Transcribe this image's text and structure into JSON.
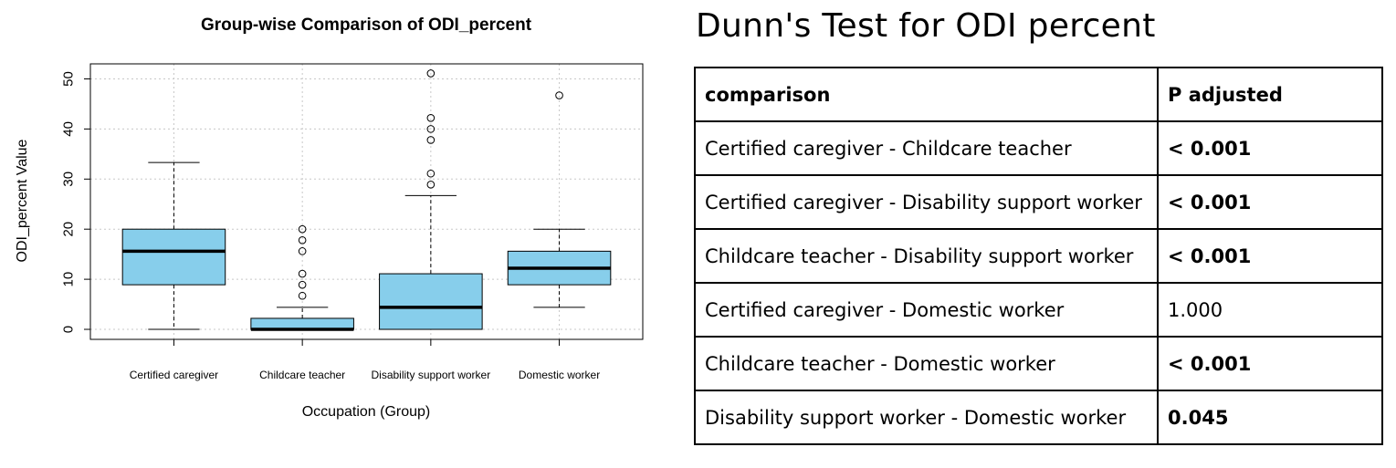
{
  "chart_data": {
    "type": "boxplot",
    "title": "Group-wise Comparison of ODI_percent",
    "xlabel": "Occupation (Group)",
    "ylabel": "ODI_percent Value",
    "ylim": [
      -2,
      53
    ],
    "yticks": [
      0,
      10,
      20,
      30,
      40,
      50
    ],
    "grid": true,
    "box_color": "#87ceeb",
    "groups": [
      {
        "name": "Certified caregiver",
        "whisker_low": 0,
        "q1": 8.9,
        "median": 15.6,
        "q3": 20,
        "whisker_high": 33.3,
        "outliers": []
      },
      {
        "name": "Childcare teacher",
        "whisker_low": 0,
        "q1": 0,
        "median": 0,
        "q3": 2.2,
        "whisker_high": 4.4,
        "outliers": [
          6.7,
          8.9,
          11.1,
          15.6,
          17.8,
          20
        ]
      },
      {
        "name": "Disability support worker",
        "whisker_low": 0,
        "q1": 0,
        "median": 4.4,
        "q3": 11.1,
        "whisker_high": 26.7,
        "outliers": [
          28.9,
          31.1,
          37.8,
          40,
          42.2,
          51.1
        ]
      },
      {
        "name": "Domestic worker",
        "whisker_low": 4.4,
        "q1": 8.9,
        "median": 12.2,
        "q3": 15.6,
        "whisker_high": 20,
        "outliers": [
          46.7
        ]
      }
    ]
  },
  "table": {
    "title": "Dunn's Test for ODI percent",
    "headers": [
      "comparison",
      "P adjusted"
    ],
    "rows": [
      {
        "comparison": "Certified caregiver -  Childcare teacher",
        "p": "< 0.001"
      },
      {
        "comparison": "Certified caregiver - Disability support worker",
        "p": "< 0.001"
      },
      {
        "comparison": "Childcare teacher - Disability support worker",
        "p": "< 0.001"
      },
      {
        "comparison": "Certified caregiver - Domestic worker",
        "p": "1.000"
      },
      {
        "comparison": "Childcare teacher - Domestic worker",
        "p": "< 0.001"
      },
      {
        "comparison": "Disability support worker - Domestic worker",
        "p": "0.045"
      }
    ]
  }
}
